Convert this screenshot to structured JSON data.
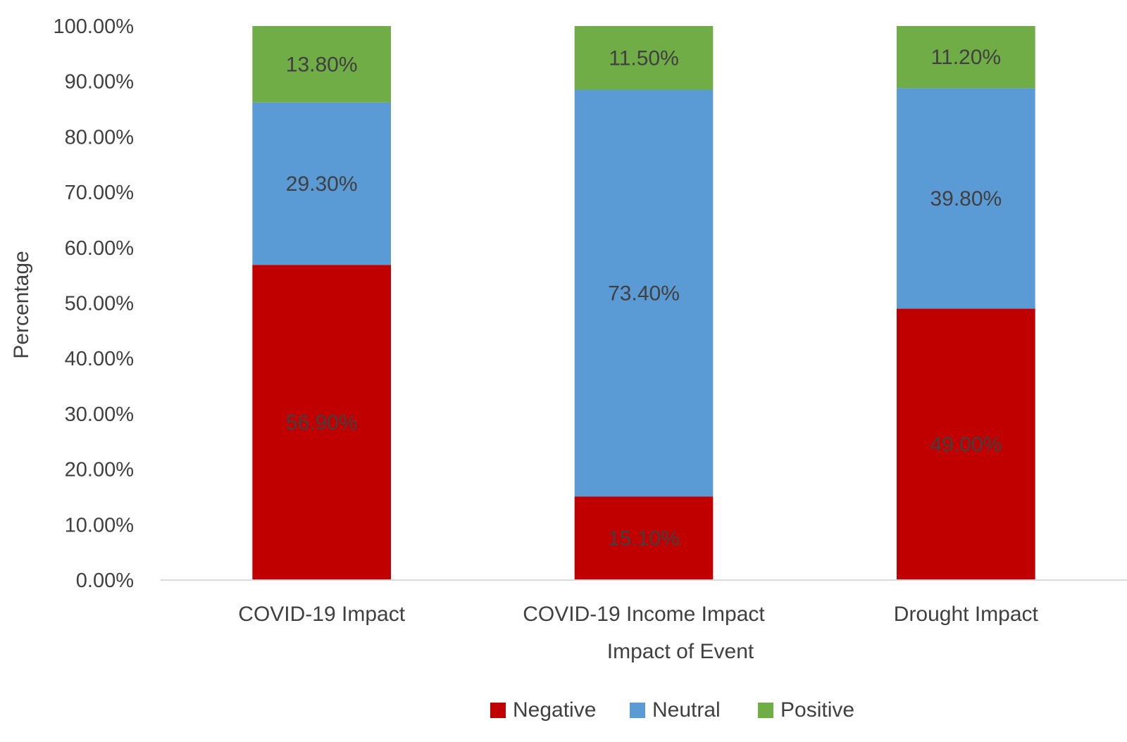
{
  "chart_data": {
    "type": "bar",
    "stacked": true,
    "title": "",
    "xlabel": "Impact of Event",
    "ylabel": "Percentage",
    "ylim": [
      0,
      100
    ],
    "yticks": [
      "0.00%",
      "10.00%",
      "20.00%",
      "30.00%",
      "40.00%",
      "50.00%",
      "60.00%",
      "70.00%",
      "80.00%",
      "90.00%",
      "100.00%"
    ],
    "categories": [
      "COVID-19 Impact",
      "COVID-19 Income Impact",
      "Drought Impact"
    ],
    "series": [
      {
        "name": "Negative",
        "color": "#c00000",
        "values": [
          56.9,
          15.1,
          49.0
        ],
        "labels": [
          "56.90%",
          "15.10%",
          "49.00%"
        ]
      },
      {
        "name": "Neutral",
        "color": "#5b9bd5",
        "values": [
          29.3,
          73.4,
          39.8
        ],
        "labels": [
          "29.30%",
          "73.40%",
          "39.80%"
        ]
      },
      {
        "name": "Positive",
        "color": "#70ad47",
        "values": [
          13.8,
          11.5,
          11.2
        ],
        "labels": [
          "13.80%",
          "11.50%",
          "11.20%"
        ]
      }
    ],
    "grid": false,
    "legend_position": "bottom"
  }
}
